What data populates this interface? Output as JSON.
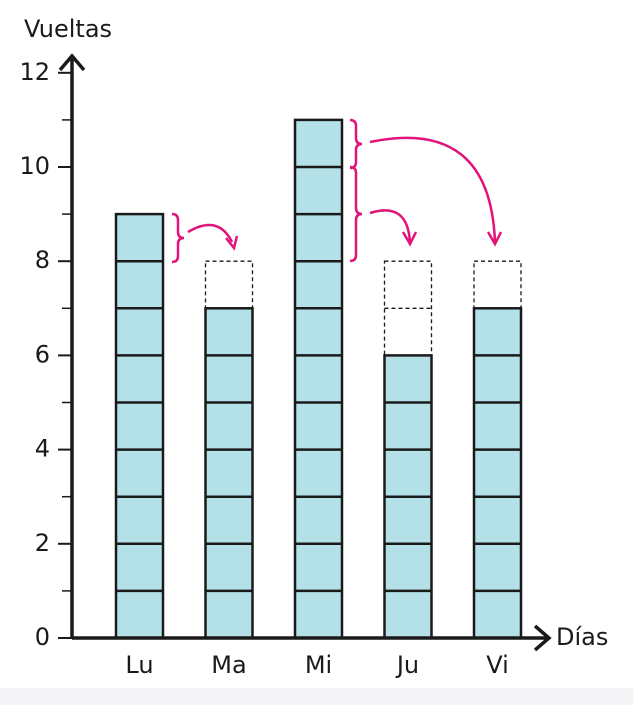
{
  "chart_data": {
    "type": "bar",
    "y_label": "Vueltas",
    "x_label": "Días",
    "categories": [
      "Lu",
      "Ma",
      "Mi",
      "Ju",
      "Vi"
    ],
    "values": [
      9,
      7,
      11,
      6,
      7
    ],
    "color": "#b3e1e7",
    "target": 8,
    "ylim": [
      0,
      12
    ],
    "yticks": [
      0,
      2,
      4,
      6,
      8,
      10,
      12
    ],
    "minor_yticks": [
      1,
      3,
      5,
      7,
      9,
      11
    ]
  }
}
